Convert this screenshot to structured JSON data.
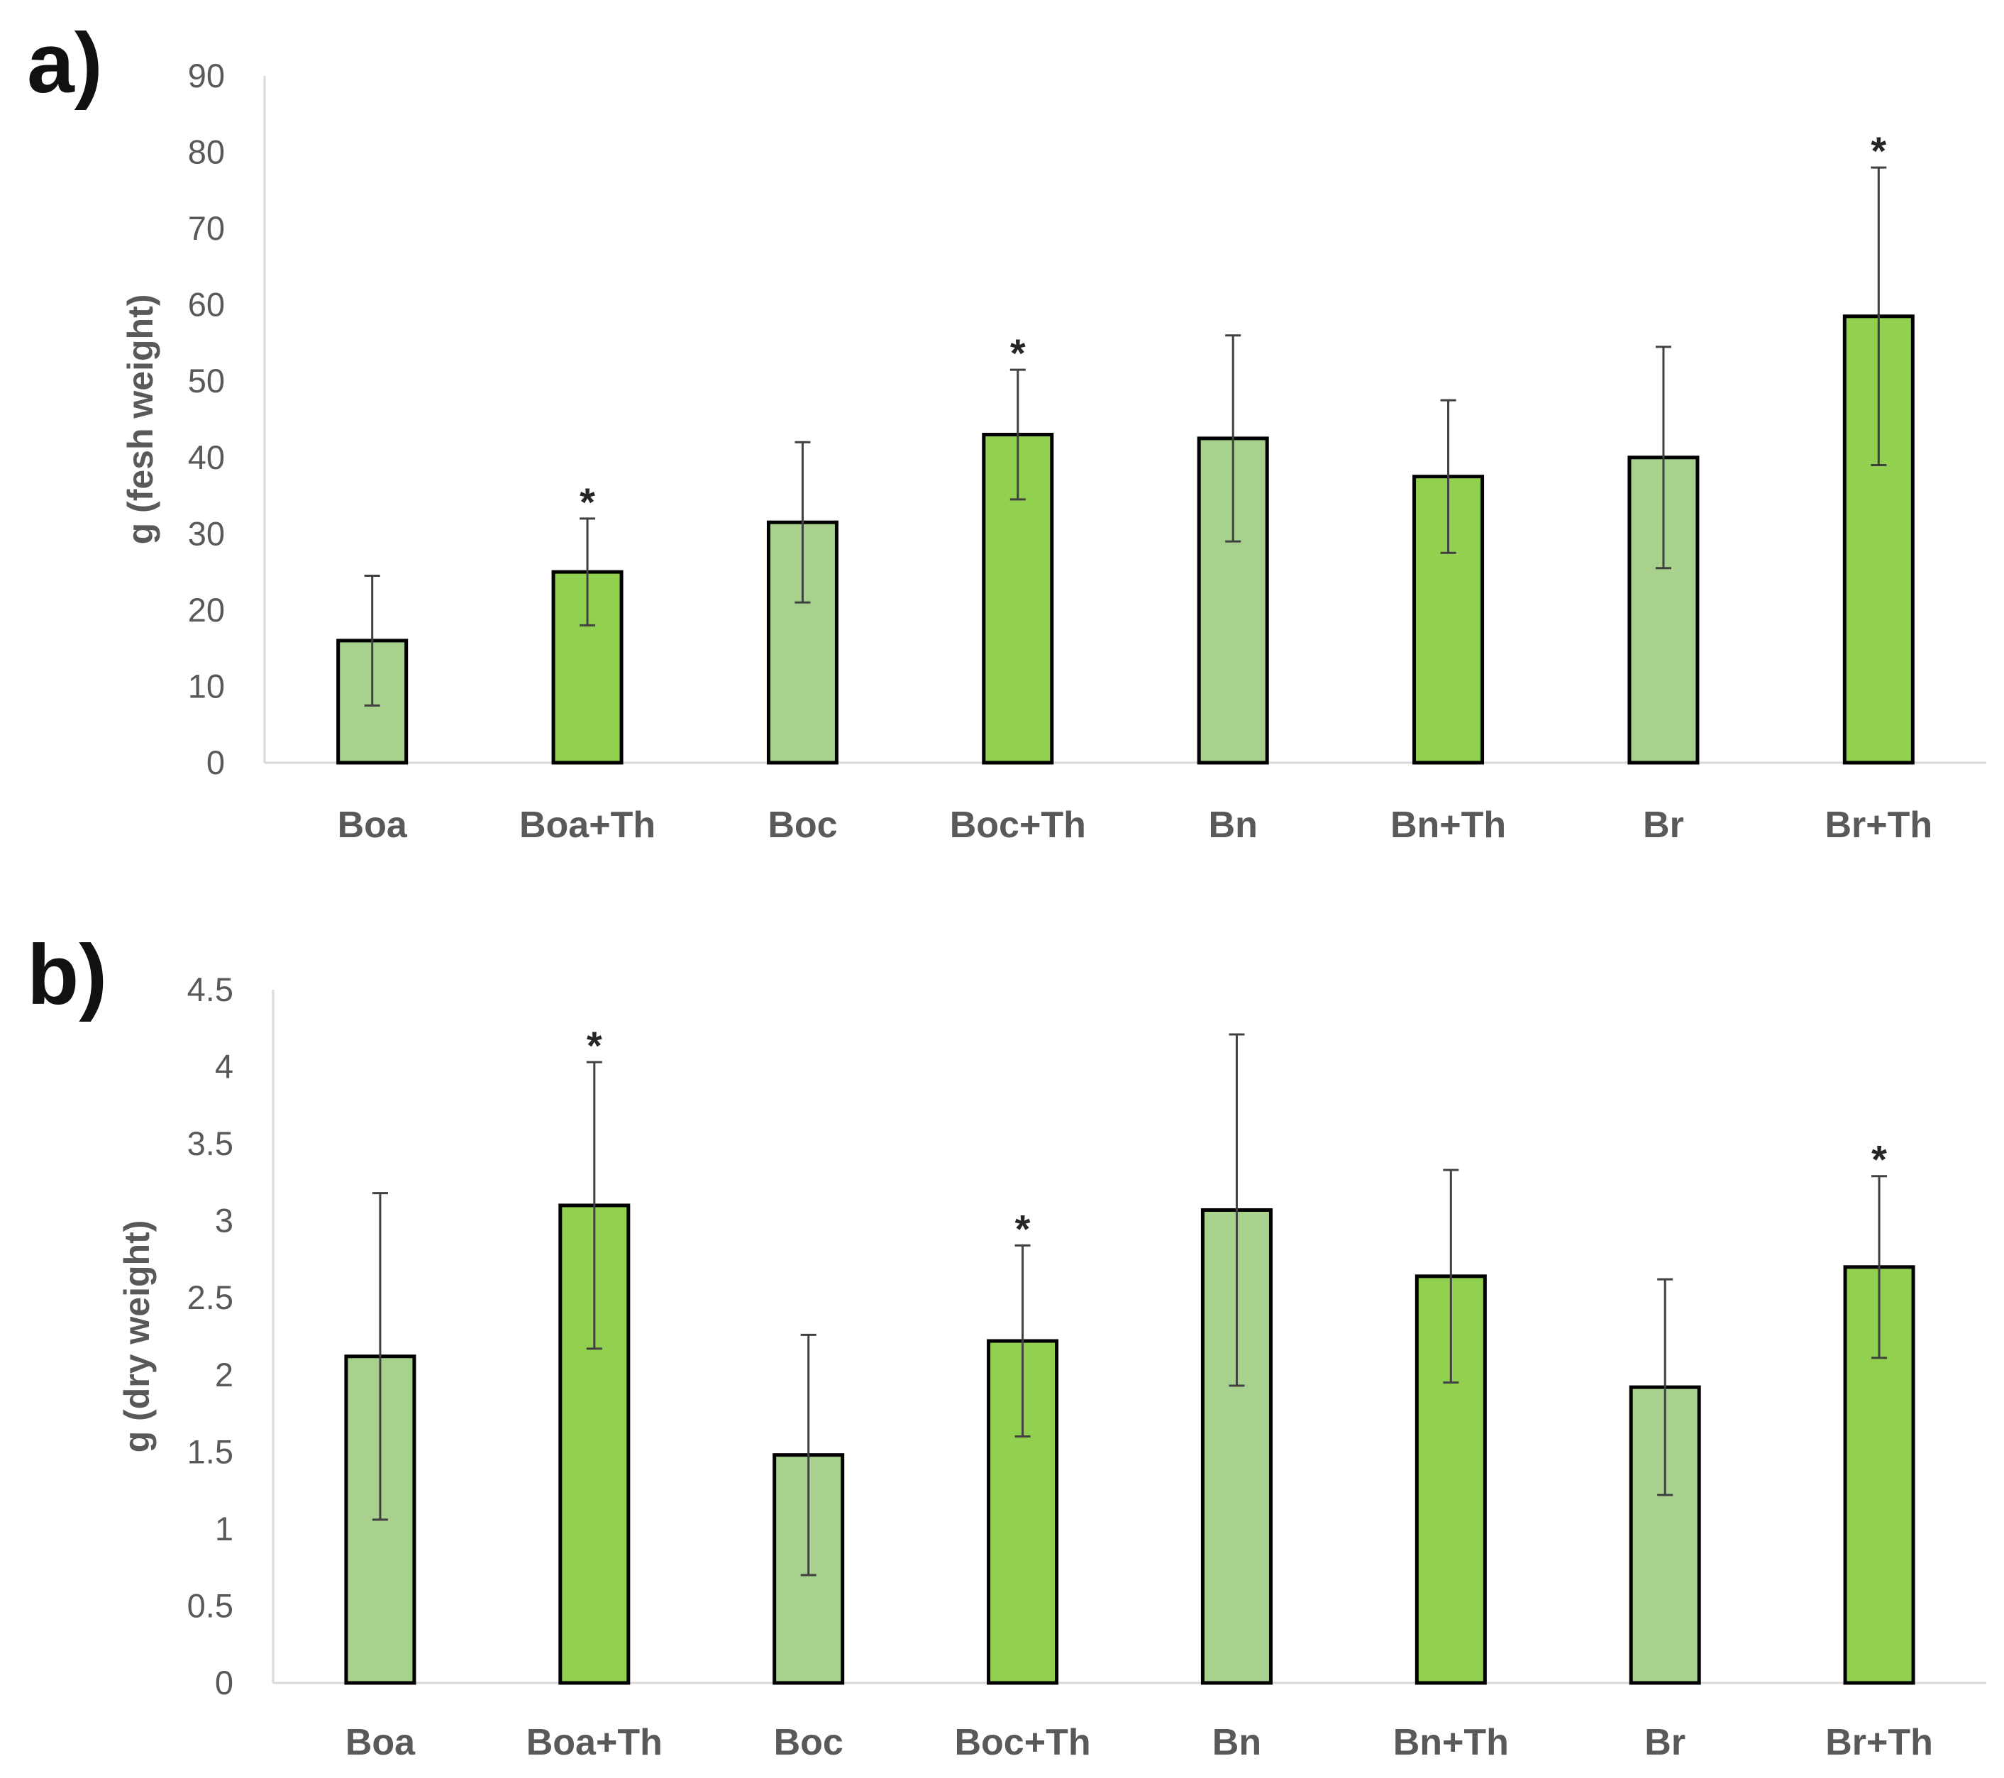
{
  "chart_data": [
    {
      "type": "bar",
      "panel_label": "a)",
      "title": "",
      "xlabel": "",
      "ylabel": "g (fesh weight)",
      "ylim": [
        0,
        90
      ],
      "ytick_step": 10,
      "yticks": [
        "0",
        "10",
        "20",
        "30",
        "40",
        "50",
        "60",
        "70",
        "80",
        "90"
      ],
      "categories": [
        "Boa",
        "Boa+Th",
        "Boc",
        "Boc+Th",
        "Bn",
        "Bn+Th",
        "Br",
        "Br+Th"
      ],
      "values": [
        16,
        25,
        31.5,
        43,
        42.5,
        37.5,
        40,
        58.5
      ],
      "error": [
        8.5,
        7,
        10.5,
        8.5,
        13.5,
        10,
        14.5,
        19.5
      ],
      "significant": [
        false,
        true,
        false,
        true,
        false,
        false,
        false,
        true
      ],
      "significance_marker": "*",
      "colors": [
        "#a8d18d",
        "#92d050",
        "#a8d18d",
        "#92d050",
        "#a8d18d",
        "#92d050",
        "#a8d18d",
        "#92d050"
      ],
      "grid": false,
      "legend": "none"
    },
    {
      "type": "bar",
      "panel_label": "b)",
      "title": "",
      "xlabel": "",
      "ylabel": "g (dry weight)",
      "ylim": [
        0,
        4.5
      ],
      "ytick_step": 0.5,
      "yticks": [
        "0",
        "0.5",
        "1",
        "1.5",
        "2",
        "2.5",
        "3",
        "3.5",
        "4",
        "4.5"
      ],
      "categories": [
        "Boa",
        "Boa+Th",
        "Boc",
        "Boc+Th",
        "Bn",
        "Bn+Th",
        "Br",
        "Br+Th"
      ],
      "values": [
        2.12,
        3.1,
        1.48,
        2.22,
        3.07,
        2.64,
        1.92,
        2.7
      ],
      "error": [
        1.06,
        0.93,
        0.78,
        0.62,
        1.14,
        0.69,
        0.7,
        0.59
      ],
      "significant": [
        false,
        true,
        false,
        true,
        false,
        false,
        false,
        true
      ],
      "significance_marker": "*",
      "colors": [
        "#a8d18d",
        "#92d050",
        "#a8d18d",
        "#92d050",
        "#a8d18d",
        "#92d050",
        "#a8d18d",
        "#92d050"
      ],
      "grid": false,
      "legend": "none"
    }
  ],
  "styles": {
    "bar_outline": "#000000",
    "axis_color": "#d9d9d9",
    "tick_text_color": "#595959",
    "category_text_color": "#595959",
    "error_bar_color": "#404040"
  }
}
